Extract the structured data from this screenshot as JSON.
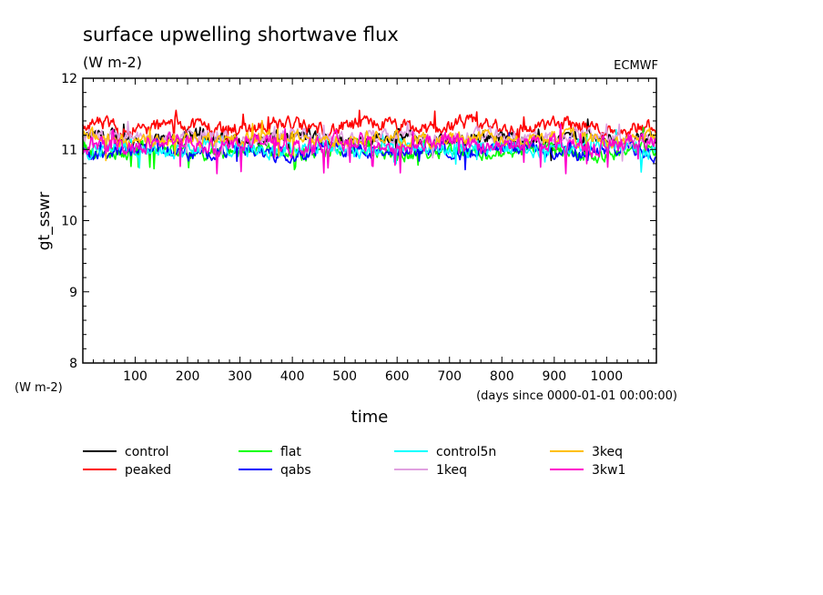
{
  "chart_data": {
    "type": "line",
    "title": "surface upwelling shortwave flux",
    "title_units": "(W m-2)",
    "source": "ECMWF",
    "ylabel": "gt_sswr",
    "yunits": "(W m-2)",
    "xlabel": "time",
    "xunits": "(days since 0000-01-01 00:00:00)",
    "xlim": [
      0,
      1095
    ],
    "ylim": [
      8,
      12
    ],
    "xticks": [
      100,
      200,
      300,
      400,
      500,
      600,
      700,
      800,
      900,
      1000
    ],
    "yticks": [
      8,
      9,
      10,
      11,
      12
    ],
    "grid": false,
    "legend_position": "bottom",
    "series": [
      {
        "name": "control",
        "color": "#000000",
        "mean": 11.15,
        "amplitude": 0.11
      },
      {
        "name": "peaked",
        "color": "#ff0000",
        "mean": 11.32,
        "amplitude": 0.12
      },
      {
        "name": "flat",
        "color": "#00ff00",
        "mean": 10.97,
        "amplitude": 0.11
      },
      {
        "name": "qabs",
        "color": "#0000ff",
        "mean": 10.98,
        "amplitude": 0.11
      },
      {
        "name": "control5n",
        "color": "#00ffff",
        "mean": 11.02,
        "amplitude": 0.12
      },
      {
        "name": "1keq",
        "color": "#e0a0e0",
        "mean": 11.18,
        "amplitude": 0.1
      },
      {
        "name": "3keq",
        "color": "#ffbf00",
        "mean": 11.15,
        "amplitude": 0.11
      },
      {
        "name": "3kw1",
        "color": "#ff00cc",
        "mean": 11.07,
        "amplitude": 0.13
      }
    ]
  }
}
